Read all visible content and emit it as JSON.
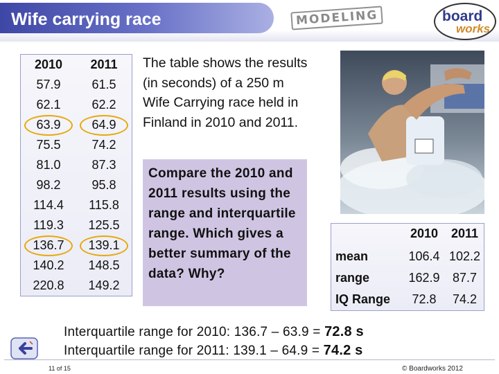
{
  "header": {
    "title": "Wife carrying race",
    "modeling_label": "MODELING",
    "logo_top": "board",
    "logo_bottom": "works"
  },
  "table": {
    "headers": [
      "2010",
      "2011"
    ],
    "rows": [
      [
        "57.9",
        "61.5"
      ],
      [
        "62.1",
        "62.2"
      ],
      [
        "63.9",
        "64.9"
      ],
      [
        "75.5",
        "74.2"
      ],
      [
        "81.0",
        "87.3"
      ],
      [
        "98.2",
        "95.8"
      ],
      [
        "114.4",
        "115.8"
      ],
      [
        "119.3",
        "125.5"
      ],
      [
        "136.7",
        "139.1"
      ],
      [
        "140.2",
        "148.5"
      ],
      [
        "220.8",
        "149.2"
      ]
    ]
  },
  "description": "The table shows the results (in seconds) of a 250 m Wife Carrying race held in Finland in 2010 and 2011.",
  "question": "Compare the 2010 and 2011 results using the range and interquartile range. Which gives a better summary of the data? Why?",
  "summary": {
    "col_2010": "2010",
    "col_2011": "2011",
    "rows": [
      {
        "label": "mean",
        "v2010": "106.4",
        "v2011": "102.2"
      },
      {
        "label": "range",
        "v2010": "162.9",
        "v2011": "87.7"
      },
      {
        "label": "IQ Range",
        "v2010": "72.8",
        "v2011": "74.2"
      }
    ]
  },
  "explanation": {
    "line1_prefix": "Interquartile range for 2010:  136.7 – 63.9 =  ",
    "line1_result": "72.8 s",
    "line2_prefix": "Interquartile range for 2011:  139.1 – 64.9 =  ",
    "line2_result": "74.2 s"
  },
  "footer": {
    "page_number": "11 of 15",
    "copyright": "© Boardworks 2012"
  },
  "colors": {
    "title_bar": "#4a52b0",
    "question_bg": "#cfc5e3",
    "highlight_ring": "#e8a80a"
  }
}
